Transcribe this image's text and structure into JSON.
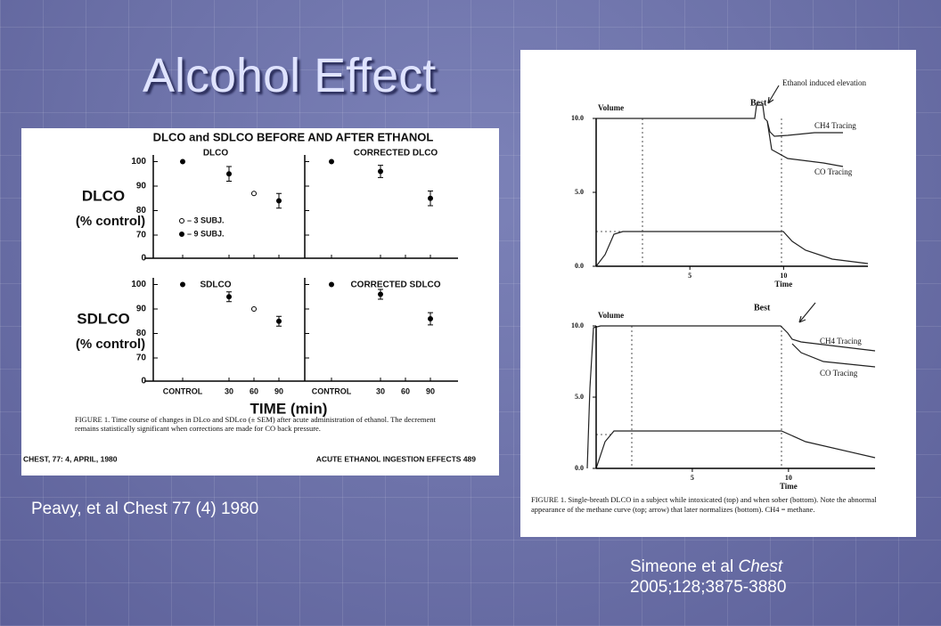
{
  "slide": {
    "title": "Alcohol Effect",
    "left_caption": "Peavy, et al Chest 77 (4) 1980",
    "right_caption": {
      "authors": "Simeone et al",
      "journal": "Chest",
      "citation": "2005;128;3875-3880"
    }
  },
  "left_figure": {
    "type": "scatter",
    "title": "DLCO and SDLCO BEFORE AND AFTER ETHANOL",
    "x_label": "TIME (min)",
    "categories": [
      "CONTROL",
      "30",
      "60",
      "90"
    ],
    "yticks": [
      0,
      70,
      80,
      90,
      100
    ],
    "legend": [
      {
        "label": "– 3 SUBJ.",
        "marker": "open"
      },
      {
        "label": "– 9 SUBJ.",
        "marker": "filled"
      }
    ],
    "rows": [
      {
        "label": "DLCO",
        "unit": "(% control)"
      },
      {
        "label": "SDLCO",
        "unit": "(% control)"
      }
    ],
    "panels": [
      {
        "title": "DLCO",
        "values": [
          100,
          95,
          87,
          84
        ],
        "errors": [
          null,
          3,
          null,
          3
        ],
        "open": [
          false,
          false,
          true,
          false
        ]
      },
      {
        "title": "CORRECTED DLCO",
        "values": [
          100,
          96,
          null,
          85
        ],
        "errors": [
          null,
          2.5,
          null,
          3
        ],
        "open": [
          false,
          false,
          false,
          false
        ]
      },
      {
        "title": "SDLCO",
        "values": [
          100,
          95,
          90,
          85
        ],
        "errors": [
          null,
          2,
          null,
          2
        ],
        "open": [
          false,
          false,
          true,
          false
        ]
      },
      {
        "title": "CORRECTED SDLCO",
        "values": [
          100,
          96,
          null,
          86
        ],
        "errors": [
          null,
          2,
          null,
          2.5
        ],
        "open": [
          false,
          false,
          false,
          false
        ]
      }
    ],
    "caption": "FIGURE 1. Time course of changes in DLco and SDLco (± SEM) after acute administration of ethanol. The decrement remains statistically significant when corrections are made for CO back pressure.",
    "footer_left": "CHEST, 77: 4, APRIL, 1980",
    "footer_right": "ACUTE ETHANOL INGESTION EFFECTS 489"
  },
  "right_figure": {
    "charts": [
      {
        "y_label": "Volume",
        "x_label": "Time",
        "xlim": [
          0,
          14.5
        ],
        "ylim": [
          0,
          10
        ],
        "yticks": [
          {
            "value": 0,
            "label": "0.0"
          },
          {
            "value": 5,
            "label": "5.0"
          },
          {
            "value": 10,
            "label": "10.0"
          }
        ],
        "xticks": [
          5,
          10
        ],
        "best_label": "Best",
        "annotation": "Ethanol induced elevation",
        "series_labels": [
          "CH4 Tracing",
          "CO Tracing"
        ]
      },
      {
        "y_label": "Volume",
        "x_label": "Time",
        "xlim": [
          0,
          14.5
        ],
        "ylim": [
          0,
          10
        ],
        "yticks": [
          {
            "value": 0,
            "label": "0.0"
          },
          {
            "value": 5,
            "label": "5.0"
          },
          {
            "value": 10,
            "label": "10.0"
          }
        ],
        "xticks": [
          5,
          10
        ],
        "best_label": "Best",
        "series_labels": [
          "CH4 Tracing",
          "CO Tracing"
        ]
      }
    ],
    "caption": "FIGURE 1. Single-breath DLCO in a subject while intoxicated (top) and when sober (bottom). Note the abnormal appearance of the methane curve (top; arrow) that later normalizes (bottom). CH4 = methane."
  }
}
